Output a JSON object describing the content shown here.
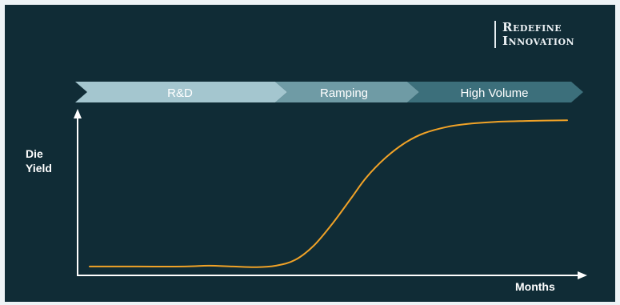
{
  "brand": {
    "line1": "Redefine",
    "line2": "Innovation"
  },
  "phases": [
    {
      "label": "R&D",
      "color": "#a4c6cf"
    },
    {
      "label": "Ramping",
      "color": "#6f9ba5"
    },
    {
      "label": "High Volume",
      "color": "#3c6f7b"
    }
  ],
  "colors": {
    "background": "#102c36",
    "curve": "#f0a227",
    "axis": "#ffffff"
  },
  "chart_data": {
    "type": "line",
    "title": "",
    "xlabel": "Months",
    "ylabel": [
      "Die",
      "Yield"
    ],
    "xlim": [
      0,
      100
    ],
    "ylim": [
      0,
      100
    ],
    "grid": false,
    "series": [
      {
        "points": [
          [
            0,
            3
          ],
          [
            10,
            3
          ],
          [
            20,
            3
          ],
          [
            25,
            3.5
          ],
          [
            30,
            3
          ],
          [
            35,
            2.6
          ],
          [
            39,
            3.5
          ],
          [
            43,
            7
          ],
          [
            47,
            16
          ],
          [
            51,
            30
          ],
          [
            55,
            46
          ],
          [
            58,
            58
          ],
          [
            62,
            70
          ],
          [
            66,
            79
          ],
          [
            70,
            85
          ],
          [
            75,
            89
          ],
          [
            80,
            91
          ],
          [
            85,
            92
          ],
          [
            92,
            92.6
          ],
          [
            100,
            93
          ]
        ]
      }
    ]
  }
}
